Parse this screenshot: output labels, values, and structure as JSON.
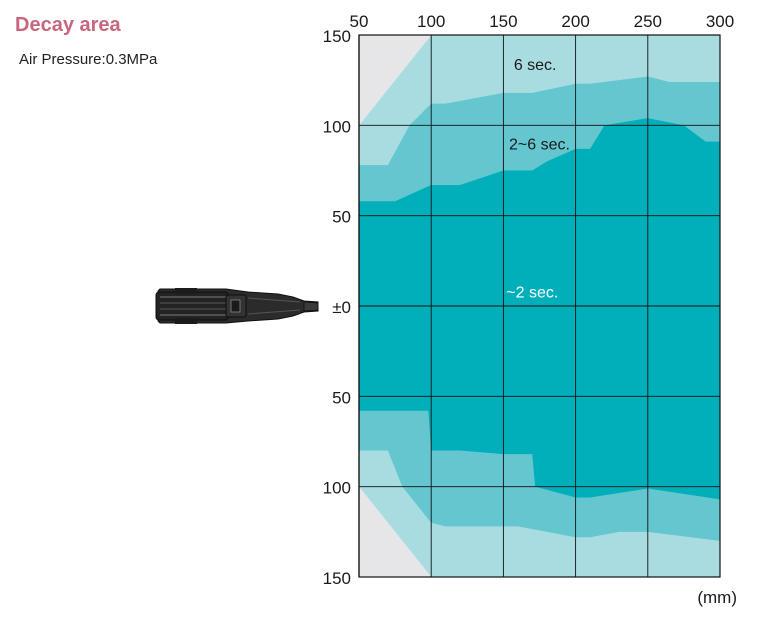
{
  "header": {
    "title": "Decay area",
    "subtitle": "Air Pressure:0.3MPa"
  },
  "colors": {
    "title": "#c8667d",
    "zone_outer": "#a8dce0",
    "zone_middle": "#64c6cf",
    "zone_inner": "#00afba",
    "no_effect": "#e6e6e8",
    "grid": "#111111",
    "nozzle": "#2a2a2a"
  },
  "icons": {
    "nozzle": "air-nozzle-icon"
  },
  "chart_data": {
    "type": "area",
    "title": "Decay area",
    "subtitle": "Air Pressure:0.3MPa",
    "unit_label": "(mm)",
    "x_ticks": [
      "50",
      "100",
      "150",
      "200",
      "250",
      "300"
    ],
    "y_ticks": [
      "150",
      "100",
      "50",
      "±0",
      "50",
      "100",
      "150"
    ],
    "x_range": [
      50,
      300
    ],
    "y_range": [
      -150,
      150
    ],
    "grid": true,
    "zones": [
      {
        "name": "6 sec.",
        "color": "#a8dce0",
        "upper": [
          [
            50,
            100
          ],
          [
            100,
            150
          ],
          [
            300,
            150
          ]
        ],
        "lower": [
          [
            50,
            -100
          ],
          [
            100,
            -150
          ],
          [
            300,
            -150
          ]
        ]
      },
      {
        "name": "2~6 sec.",
        "color": "#64c6cf",
        "upper": [
          [
            50,
            78
          ],
          [
            70,
            78
          ],
          [
            85,
            100
          ],
          [
            100,
            112
          ],
          [
            110,
            112
          ],
          [
            150,
            118
          ],
          [
            170,
            118
          ],
          [
            200,
            123
          ],
          [
            210,
            123
          ],
          [
            250,
            127
          ],
          [
            265,
            124
          ],
          [
            300,
            124
          ]
        ],
        "lower": [
          [
            50,
            -80
          ],
          [
            70,
            -80
          ],
          [
            80,
            -100
          ],
          [
            100,
            -120
          ],
          [
            110,
            -122
          ],
          [
            150,
            -122
          ],
          [
            160,
            -122
          ],
          [
            200,
            -128
          ],
          [
            210,
            -128
          ],
          [
            230,
            -125
          ],
          [
            250,
            -125
          ],
          [
            300,
            -130
          ]
        ]
      },
      {
        "name": "~2 sec.",
        "color": "#00afba",
        "upper": [
          [
            50,
            58
          ],
          [
            75,
            58
          ],
          [
            100,
            67
          ],
          [
            120,
            67
          ],
          [
            150,
            75
          ],
          [
            170,
            75
          ],
          [
            180,
            80
          ],
          [
            200,
            87
          ],
          [
            210,
            87
          ],
          [
            220,
            100
          ],
          [
            250,
            104
          ],
          [
            275,
            100
          ],
          [
            290,
            91
          ],
          [
            300,
            91
          ]
        ],
        "lower": [
          [
            50,
            -58
          ],
          [
            98,
            -58
          ],
          [
            100,
            -80
          ],
          [
            120,
            -80
          ],
          [
            150,
            -82
          ],
          [
            170,
            -82
          ],
          [
            172,
            -100
          ],
          [
            200,
            -106
          ],
          [
            210,
            -106
          ],
          [
            250,
            -101
          ],
          [
            300,
            -107
          ]
        ]
      }
    ],
    "no_effect_area": {
      "color": "#e6e6e8",
      "upper": [
        [
          50,
          150
        ],
        [
          100,
          150
        ],
        [
          50,
          100
        ]
      ],
      "lower": [
        [
          50,
          -150
        ],
        [
          100,
          -150
        ],
        [
          50,
          -100
        ]
      ]
    },
    "annotations": [
      {
        "text": "6 sec.",
        "x": 172,
        "y": 134,
        "color": "#1a1a1a"
      },
      {
        "text": "2~6 sec.",
        "x": 175,
        "y": 90,
        "color": "#1a1a1a"
      },
      {
        "text": "~2 sec.",
        "x": 170,
        "y": 8,
        "color": "#ffffff"
      }
    ]
  }
}
